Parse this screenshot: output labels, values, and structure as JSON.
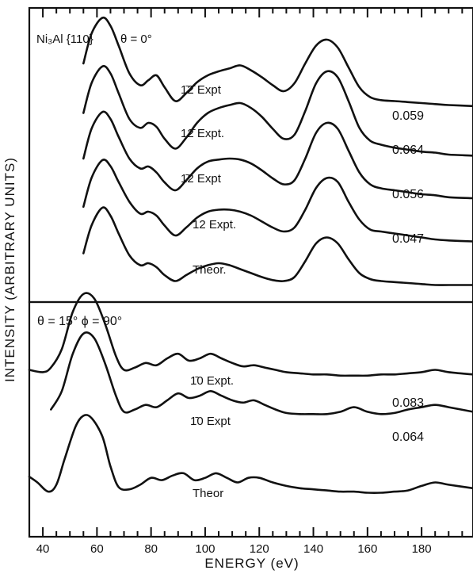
{
  "chart_data": {
    "type": "line",
    "xlabel": "ENERGY (eV)",
    "ylabel": "INTENSITY (ARBITRARY UNITS)",
    "xlim": [
      35,
      199
    ],
    "x_ticks": [
      40,
      60,
      80,
      100,
      120,
      140,
      160,
      180
    ],
    "y_ticks_shown": false,
    "panels": [
      {
        "title": "Ni₃Al {110}",
        "angle_label": "θ = 0°",
        "series": [
          {
            "name": "1̄2̄ Expt",
            "r_factor": "0.059",
            "x": [
              55,
              58,
              62,
              65,
              68,
              72,
              76,
              79,
              82,
              85,
              89,
              93,
              97,
              101,
              105,
              109,
              113,
              117,
              121,
              125,
              129,
              133,
              137,
              141,
              145,
              149,
              153,
              157,
              161,
              165,
              170,
              175,
              180,
              185,
              190,
              199
            ],
            "y": [
              0.52,
              0.82,
              0.98,
              0.9,
              0.7,
              0.42,
              0.3,
              0.35,
              0.4,
              0.28,
              0.14,
              0.22,
              0.33,
              0.4,
              0.44,
              0.47,
              0.5,
              0.45,
              0.38,
              0.3,
              0.24,
              0.32,
              0.52,
              0.7,
              0.76,
              0.68,
              0.48,
              0.28,
              0.18,
              0.15,
              0.14,
              0.13,
              0.12,
              0.11,
              0.1,
              0.09
            ]
          },
          {
            "name": "12̄ Expt.",
            "r_factor": "0.064",
            "x": [
              55,
              58,
              62,
              65,
              68,
              72,
              76,
              79,
              82,
              85,
              89,
              93,
              97,
              101,
              105,
              109,
              113,
              117,
              121,
              125,
              129,
              133,
              137,
              141,
              145,
              149,
              153,
              157,
              161,
              165,
              170,
              175,
              180,
              185,
              190,
              199
            ],
            "y": [
              0.5,
              0.8,
              0.97,
              0.9,
              0.7,
              0.44,
              0.35,
              0.4,
              0.36,
              0.24,
              0.14,
              0.25,
              0.4,
              0.5,
              0.55,
              0.58,
              0.6,
              0.55,
              0.46,
              0.34,
              0.24,
              0.28,
              0.52,
              0.8,
              0.92,
              0.86,
              0.62,
              0.35,
              0.22,
              0.18,
              0.15,
              0.13,
              0.11,
              0.1,
              0.08,
              0.07
            ]
          },
          {
            "name": "1̄2 Expt",
            "r_factor": "0.056",
            "x": [
              55,
              58,
              62,
              65,
              68,
              72,
              76,
              79,
              82,
              85,
              89,
              93,
              97,
              101,
              105,
              109,
              113,
              117,
              121,
              125,
              129,
              133,
              137,
              141,
              145,
              149,
              153,
              157,
              161,
              165,
              170,
              175,
              180,
              185,
              190,
              199
            ],
            "y": [
              0.48,
              0.78,
              0.95,
              0.88,
              0.7,
              0.48,
              0.38,
              0.4,
              0.34,
              0.24,
              0.16,
              0.26,
              0.38,
              0.45,
              0.47,
              0.48,
              0.47,
              0.43,
              0.36,
              0.28,
              0.22,
              0.26,
              0.48,
              0.74,
              0.84,
              0.78,
              0.56,
              0.34,
              0.22,
              0.18,
              0.16,
              0.14,
              0.12,
              0.11,
              0.09,
              0.08
            ]
          },
          {
            "name": "12 Expt.",
            "r_factor": "0.047",
            "x": [
              55,
              58,
              62,
              65,
              68,
              72,
              76,
              79,
              82,
              85,
              89,
              93,
              97,
              101,
              105,
              109,
              113,
              117,
              121,
              125,
              129,
              133,
              137,
              141,
              145,
              149,
              153,
              157,
              161,
              165,
              170,
              175,
              180,
              185,
              190,
              199
            ],
            "y": [
              0.45,
              0.74,
              0.92,
              0.86,
              0.7,
              0.5,
              0.38,
              0.4,
              0.36,
              0.26,
              0.16,
              0.24,
              0.34,
              0.4,
              0.42,
              0.42,
              0.4,
              0.36,
              0.3,
              0.24,
              0.2,
              0.24,
              0.42,
              0.64,
              0.74,
              0.7,
              0.5,
              0.32,
              0.22,
              0.2,
              0.18,
              0.16,
              0.14,
              0.12,
              0.11,
              0.1
            ]
          },
          {
            "name": "Theor.",
            "r_factor": "",
            "x": [
              55,
              58,
              62,
              65,
              68,
              72,
              76,
              79,
              82,
              85,
              89,
              93,
              97,
              101,
              105,
              109,
              113,
              117,
              121,
              125,
              129,
              133,
              137,
              141,
              145,
              149,
              153,
              157,
              161,
              165,
              170,
              175,
              180,
              185,
              190,
              199
            ],
            "y": [
              0.42,
              0.7,
              0.88,
              0.8,
              0.62,
              0.4,
              0.3,
              0.32,
              0.28,
              0.2,
              0.14,
              0.2,
              0.26,
              0.3,
              0.32,
              0.3,
              0.26,
              0.22,
              0.18,
              0.15,
              0.14,
              0.18,
              0.34,
              0.52,
              0.58,
              0.52,
              0.36,
              0.22,
              0.16,
              0.14,
              0.13,
              0.12,
              0.11,
              0.1,
              0.1,
              0.1
            ]
          }
        ]
      },
      {
        "title": "θ = 15°  ϕ = 90°",
        "series": [
          {
            "name": "1̄0 Expt.",
            "r_factor": "0.083",
            "x": [
              35,
              40,
              43,
              47,
              51,
              55,
              59,
              63,
              67,
              70,
              74,
              78,
              82,
              86,
              90,
              94,
              98,
              102,
              106,
              110,
              114,
              118,
              122,
              126,
              130,
              135,
              140,
              145,
              150,
              155,
              160,
              165,
              170,
              175,
              180,
              185,
              190,
              199
            ],
            "y": [
              0.3,
              0.28,
              0.32,
              0.48,
              0.8,
              0.96,
              0.92,
              0.7,
              0.42,
              0.3,
              0.32,
              0.36,
              0.34,
              0.4,
              0.44,
              0.38,
              0.4,
              0.44,
              0.4,
              0.36,
              0.33,
              0.34,
              0.32,
              0.3,
              0.28,
              0.27,
              0.26,
              0.26,
              0.25,
              0.25,
              0.25,
              0.26,
              0.26,
              0.27,
              0.28,
              0.3,
              0.28,
              0.26
            ]
          },
          {
            "name": "1̄0 Expt",
            "r_factor": "0.064",
            "x": [
              43,
              47,
              51,
              55,
              59,
              63,
              67,
              70,
              74,
              78,
              82,
              86,
              90,
              94,
              98,
              102,
              106,
              110,
              114,
              118,
              122,
              126,
              130,
              135,
              140,
              145,
              150,
              155,
              160,
              165,
              170,
              175,
              180,
              185,
              190,
              199
            ],
            "y": [
              0.3,
              0.46,
              0.78,
              0.96,
              0.92,
              0.7,
              0.42,
              0.28,
              0.3,
              0.34,
              0.32,
              0.38,
              0.44,
              0.4,
              0.42,
              0.46,
              0.42,
              0.38,
              0.36,
              0.38,
              0.34,
              0.3,
              0.27,
              0.26,
              0.26,
              0.26,
              0.28,
              0.32,
              0.28,
              0.26,
              0.27,
              0.3,
              0.32,
              0.34,
              0.32,
              0.28
            ]
          },
          {
            "name": "Theor",
            "r_factor": "",
            "x": [
              35,
              38,
              42,
              45,
              48,
              52,
              55,
              58,
              62,
              65,
              68,
              72,
              76,
              80,
              84,
              88,
              92,
              96,
              100,
              104,
              108,
              112,
              116,
              120,
              125,
              130,
              135,
              140,
              145,
              150,
              155,
              160,
              165,
              170,
              175,
              180,
              185,
              190,
              199
            ],
            "y": [
              0.35,
              0.3,
              0.22,
              0.28,
              0.5,
              0.78,
              0.88,
              0.86,
              0.7,
              0.44,
              0.26,
              0.24,
              0.28,
              0.34,
              0.32,
              0.36,
              0.38,
              0.32,
              0.34,
              0.38,
              0.34,
              0.3,
              0.34,
              0.34,
              0.3,
              0.27,
              0.25,
              0.24,
              0.23,
              0.22,
              0.22,
              0.21,
              0.21,
              0.22,
              0.23,
              0.27,
              0.3,
              0.28,
              0.25
            ]
          }
        ]
      }
    ]
  }
}
